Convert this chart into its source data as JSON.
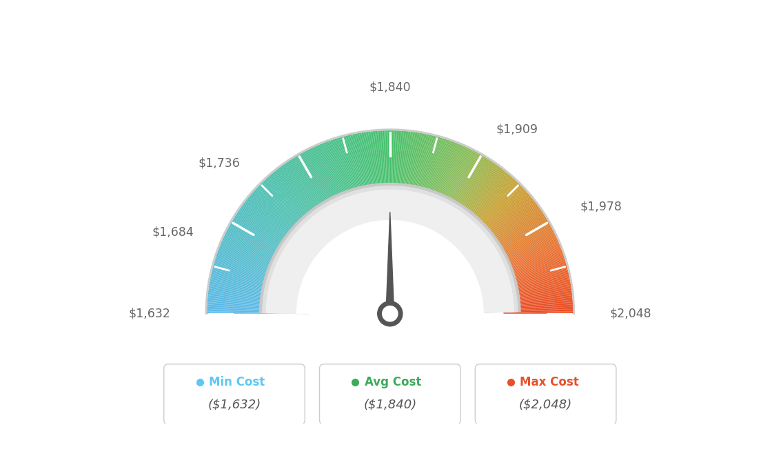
{
  "min_val": 1632,
  "max_val": 2048,
  "avg_val": 1840,
  "label_values": [
    1632,
    1684,
    1736,
    1840,
    1909,
    1978,
    2048
  ],
  "label_texts": [
    "$1,632",
    "$1,684",
    "$1,736",
    "$1,840",
    "$1,909",
    "$1,978",
    "$2,048"
  ],
  "min_cost_label": "Min Cost",
  "avg_cost_label": "Avg Cost",
  "max_cost_label": "Max Cost",
  "min_cost_value": "($1,632)",
  "avg_cost_value": "($1,840)",
  "max_cost_value": "($2,048)",
  "dot_color_min": "#5BC8F5",
  "dot_color_avg": "#3DAA5C",
  "dot_color_max": "#E8502A",
  "label_color_min": "#5BC8F5",
  "label_color_avg": "#3DAA5C",
  "label_color_max": "#E8502A",
  "background_color": "#FFFFFF",
  "needle_color": "#555555",
  "text_color": "#666666",
  "color_stops": [
    [
      0.0,
      "#5BB8E8"
    ],
    [
      0.25,
      "#4BBFB0"
    ],
    [
      0.5,
      "#45C06A"
    ],
    [
      0.65,
      "#8BBB55"
    ],
    [
      0.75,
      "#C9A030"
    ],
    [
      0.88,
      "#E87030"
    ],
    [
      1.0,
      "#E84820"
    ]
  ]
}
